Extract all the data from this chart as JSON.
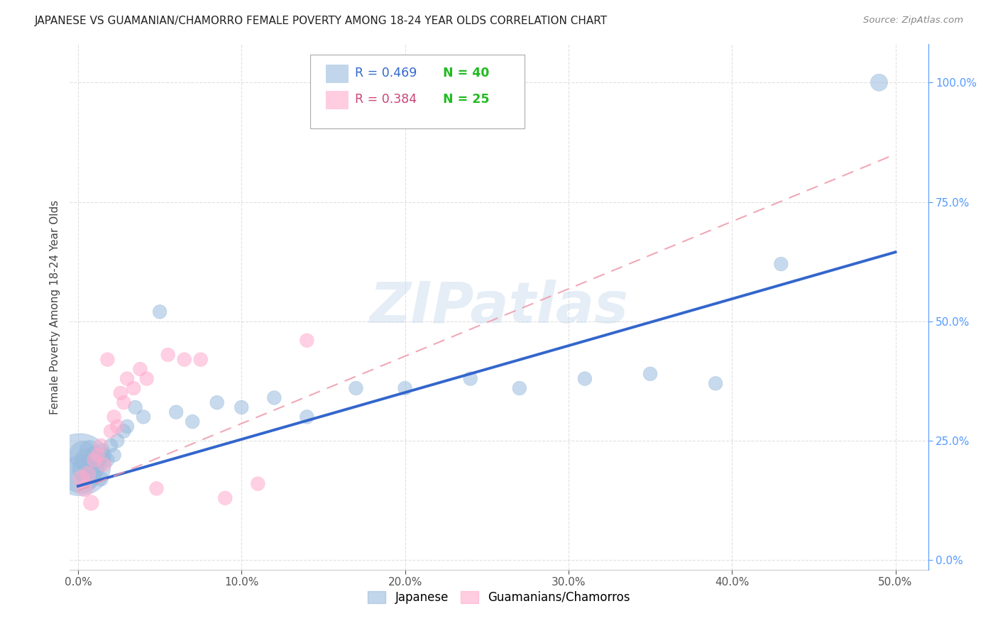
{
  "title": "JAPANESE VS GUAMANIAN/CHAMORRO FEMALE POVERTY AMONG 18-24 YEAR OLDS CORRELATION CHART",
  "source": "Source: ZipAtlas.com",
  "ylabel": "Female Poverty Among 18-24 Year Olds",
  "xlim": [
    -0.005,
    0.52
  ],
  "ylim": [
    -0.02,
    1.08
  ],
  "xticks": [
    0.0,
    0.1,
    0.2,
    0.3,
    0.4,
    0.5
  ],
  "xticklabels": [
    "0.0%",
    "10.0%",
    "20.0%",
    "30.0%",
    "40.0%",
    "50.0%"
  ],
  "yticks_right": [
    0.0,
    0.25,
    0.5,
    0.75,
    1.0
  ],
  "yticklabels_right": [
    "0.0%",
    "25.0%",
    "50.0%",
    "75.0%",
    "100.0%"
  ],
  "watermark": "ZIPatlas",
  "legend_r1": "R = 0.469",
  "legend_n1": "N = 40",
  "legend_r2": "R = 0.384",
  "legend_n2": "N = 25",
  "blue_color": "#99BBDD",
  "pink_color": "#FFAACC",
  "line_blue": "#3366CC",
  "line_pink": "#EE99AA",
  "background_color": "#FFFFFF",
  "grid_color": "#DDDDDD",
  "japanese_x": [
    0.001,
    0.002,
    0.003,
    0.004,
    0.005,
    0.006,
    0.007,
    0.008,
    0.009,
    0.01,
    0.011,
    0.012,
    0.013,
    0.014,
    0.015,
    0.016,
    0.018,
    0.02,
    0.022,
    0.024,
    0.028,
    0.03,
    0.035,
    0.04,
    0.05,
    0.06,
    0.07,
    0.085,
    0.1,
    0.12,
    0.14,
    0.17,
    0.2,
    0.24,
    0.27,
    0.31,
    0.35,
    0.39,
    0.43,
    0.49
  ],
  "japanese_y": [
    0.2,
    0.18,
    0.22,
    0.19,
    0.21,
    0.17,
    0.23,
    0.2,
    0.18,
    0.22,
    0.19,
    0.21,
    0.2,
    0.17,
    0.23,
    0.22,
    0.21,
    0.24,
    0.22,
    0.25,
    0.27,
    0.28,
    0.32,
    0.3,
    0.52,
    0.31,
    0.29,
    0.33,
    0.32,
    0.34,
    0.3,
    0.36,
    0.36,
    0.38,
    0.36,
    0.38,
    0.39,
    0.37,
    0.62,
    1.0
  ],
  "japanese_sizes": [
    4000,
    1500,
    800,
    600,
    500,
    450,
    400,
    350,
    320,
    300,
    280,
    260,
    240,
    220,
    200,
    200,
    200,
    200,
    200,
    200,
    200,
    200,
    200,
    200,
    200,
    200,
    200,
    200,
    200,
    200,
    200,
    200,
    200,
    200,
    200,
    200,
    200,
    200,
    200,
    300
  ],
  "chamorro_x": [
    0.002,
    0.004,
    0.006,
    0.008,
    0.01,
    0.012,
    0.014,
    0.016,
    0.018,
    0.02,
    0.022,
    0.024,
    0.026,
    0.028,
    0.03,
    0.034,
    0.038,
    0.042,
    0.048,
    0.055,
    0.065,
    0.075,
    0.09,
    0.11,
    0.14
  ],
  "chamorro_y": [
    0.17,
    0.15,
    0.18,
    0.12,
    0.21,
    0.22,
    0.24,
    0.2,
    0.42,
    0.27,
    0.3,
    0.28,
    0.35,
    0.33,
    0.38,
    0.36,
    0.4,
    0.38,
    0.15,
    0.43,
    0.42,
    0.42,
    0.13,
    0.16,
    0.46
  ],
  "chamorro_sizes": [
    300,
    280,
    260,
    240,
    220,
    200,
    200,
    200,
    200,
    200,
    200,
    200,
    200,
    200,
    200,
    200,
    200,
    200,
    200,
    200,
    200,
    200,
    200,
    200,
    200
  ],
  "blue_line_x0": 0.0,
  "blue_line_y0": 0.155,
  "blue_line_x1": 0.5,
  "blue_line_y1": 0.645,
  "pink_line_x0": 0.0,
  "pink_line_y0": 0.145,
  "pink_line_x1": 0.5,
  "pink_line_y1": 0.85
}
